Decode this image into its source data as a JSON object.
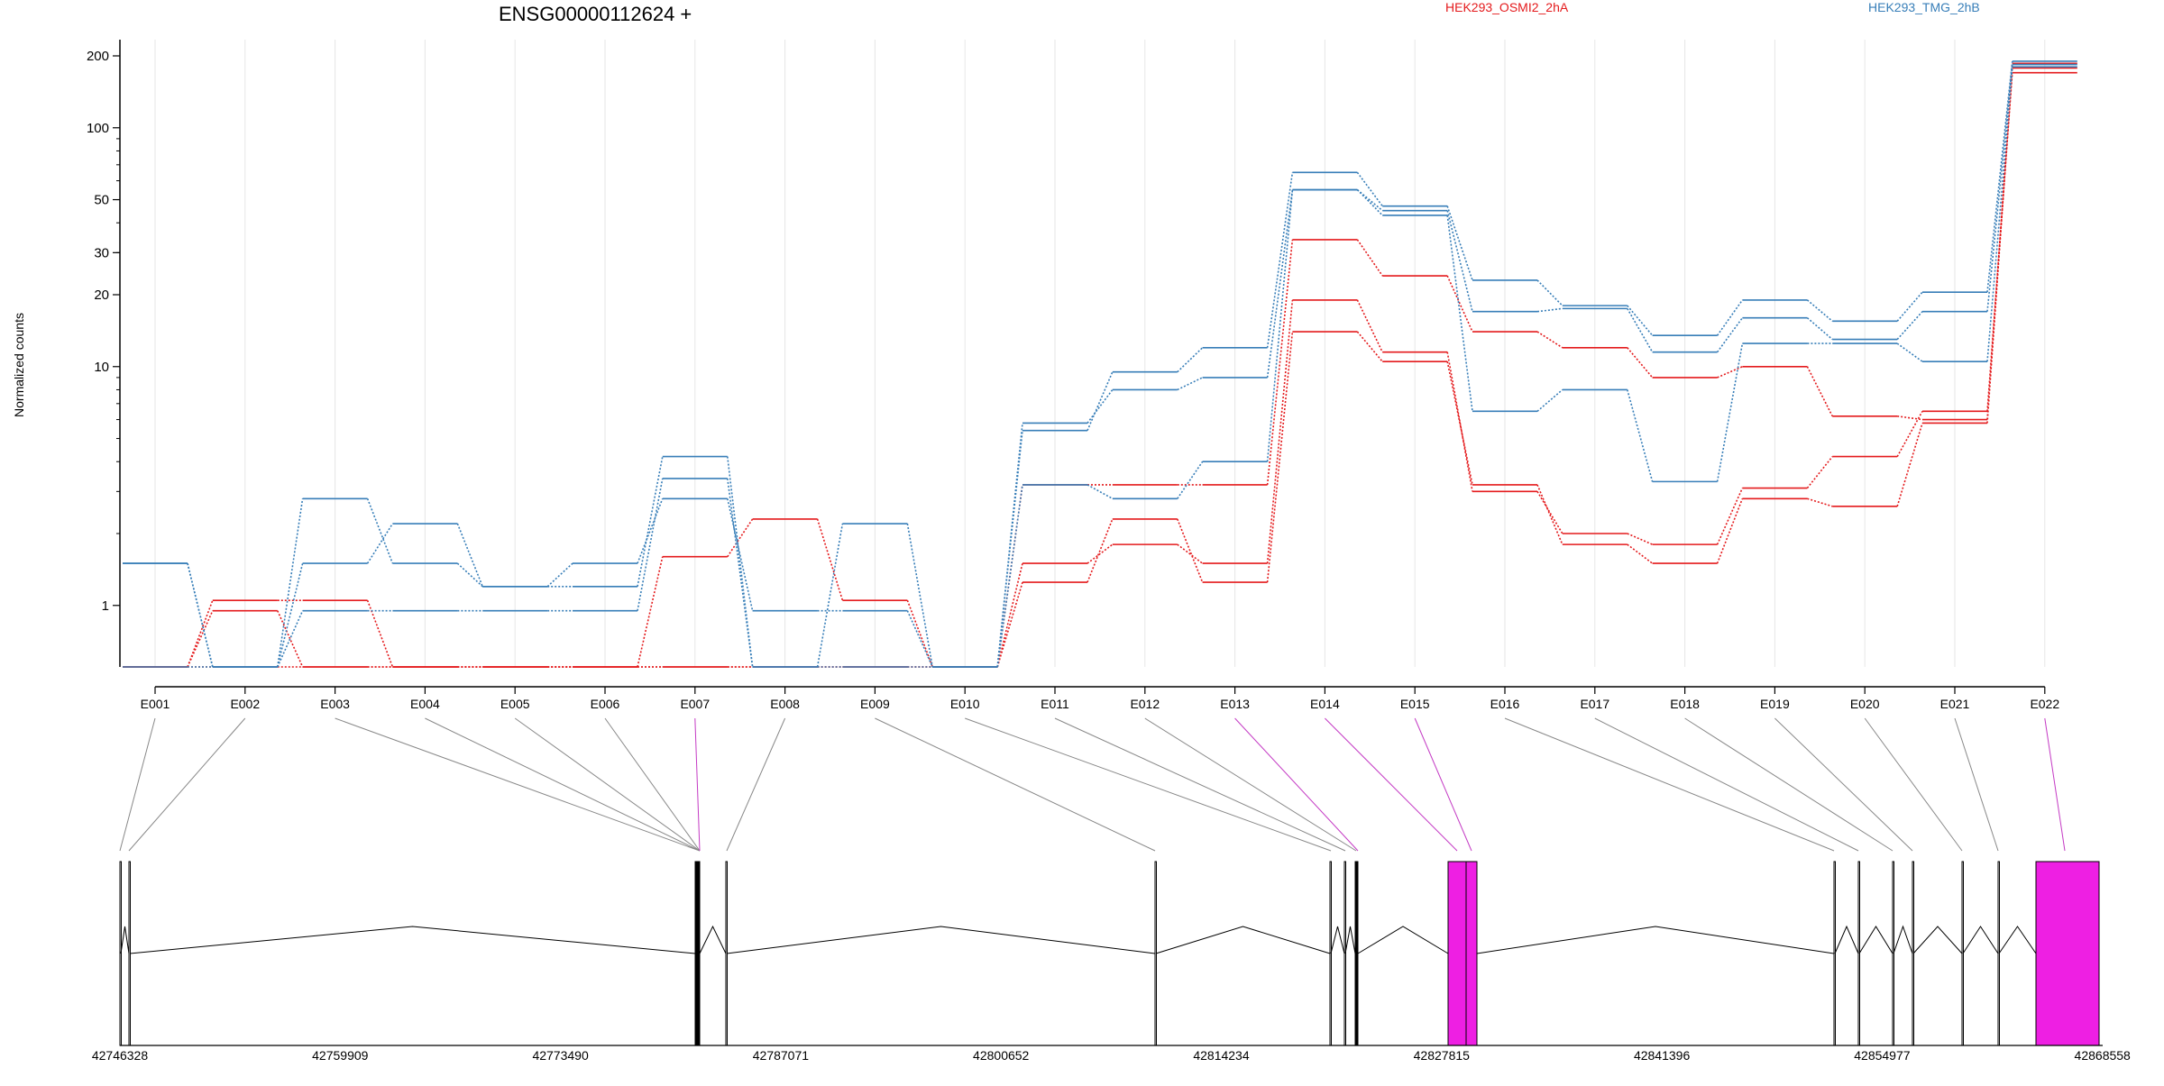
{
  "chart_data": {
    "type": "line",
    "title": "ENSG00000112624 +",
    "ylabel": "Normalized counts",
    "xlabel": "",
    "y_scale": "log",
    "y_ticks": [
      1,
      10,
      20,
      30,
      50,
      100,
      200
    ],
    "grid": "vertical",
    "categories": [
      "E001",
      "E002",
      "E003",
      "E004",
      "E005",
      "E006",
      "E007",
      "E008",
      "E009",
      "E010",
      "E011",
      "E012",
      "E013",
      "E014",
      "E015",
      "E016",
      "E017",
      "E018",
      "E019",
      "E020",
      "E021",
      "E022"
    ],
    "groups": [
      {
        "name": "HEK293_OSMI2_2hA",
        "color": "#e41a1c"
      },
      {
        "name": "HEK293_TMG_2hB",
        "color": "#377eb8"
      }
    ],
    "series": [
      {
        "group": "HEK293_OSMI2_2hA",
        "values": [
          0.45,
          1.05,
          1.05,
          0.45,
          0.45,
          0.45,
          1.6,
          2.3,
          1.05,
          0.45,
          1.5,
          1.8,
          1.5,
          19,
          11.5,
          3,
          2,
          1.8,
          3.1,
          4.2,
          6.5,
          170
        ]
      },
      {
        "group": "HEK293_OSMI2_2hA",
        "values": [
          0.45,
          0.95,
          0.45,
          0.45,
          0.45,
          0.45,
          0.45,
          0.45,
          0.45,
          0.45,
          1.25,
          2.3,
          1.25,
          14,
          10.5,
          3.2,
          1.8,
          1.5,
          2.8,
          2.6,
          5.8,
          178
        ]
      },
      {
        "group": "HEK293_OSMI2_2hA",
        "values": [
          0.45,
          0.45,
          0.45,
          0.45,
          0.45,
          0.45,
          0.45,
          0.45,
          0.45,
          0.45,
          3.2,
          3.2,
          3.2,
          34,
          24,
          14,
          12,
          9,
          10,
          6.2,
          6,
          186
        ]
      },
      {
        "group": "HEK293_TMG_2hB",
        "values": [
          1.5,
          0.45,
          2.8,
          1.5,
          1.2,
          1.5,
          2.8,
          0.95,
          0.95,
          0.45,
          5.4,
          9.5,
          12,
          65,
          47,
          23,
          18,
          13.5,
          19,
          15.5,
          20.5,
          190
        ]
      },
      {
        "group": "HEK293_TMG_2hB",
        "values": [
          1.5,
          0.45,
          0.95,
          0.95,
          0.95,
          0.95,
          3.4,
          0.45,
          0.45,
          0.45,
          5.8,
          8,
          9,
          55,
          45,
          17,
          17.5,
          11.5,
          16,
          13,
          17,
          184
        ]
      },
      {
        "group": "HEK293_TMG_2hB",
        "values": [
          0.45,
          0.45,
          1.5,
          2.2,
          1.2,
          1.2,
          4.2,
          0.45,
          2.2,
          0.45,
          3.2,
          2.8,
          4,
          55,
          43,
          6.5,
          8,
          3.3,
          12.5,
          12.5,
          10.5,
          180
        ]
      }
    ],
    "gene_model": {
      "axis_ticks": [
        "42746328",
        "42759909",
        "42773490",
        "42787071",
        "42800652",
        "42814234",
        "42827815",
        "42841396",
        "42854977",
        "42868558"
      ],
      "highlighted_exons": [
        "E007",
        "E013",
        "E014",
        "E015",
        "E022"
      ],
      "highlight_color": "#ee1fe3"
    }
  }
}
